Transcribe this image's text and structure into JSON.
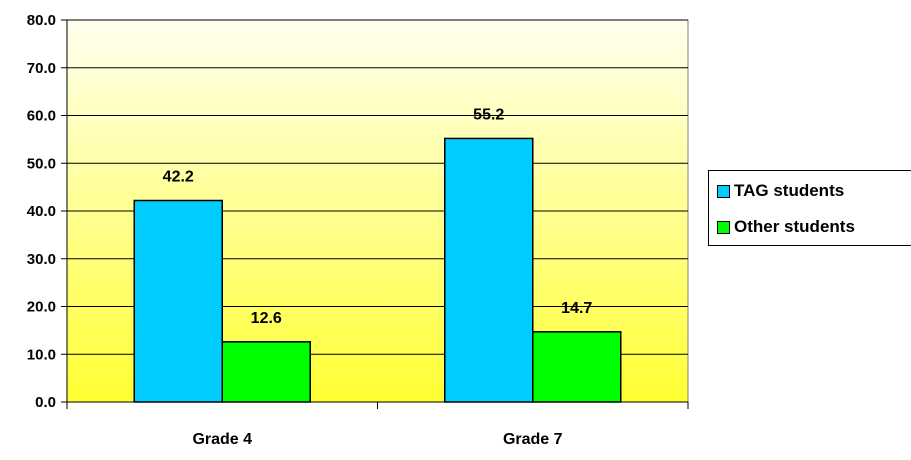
{
  "chart_data": {
    "type": "bar",
    "categories": [
      "Grade 4",
      "Grade 7"
    ],
    "series": [
      {
        "name": "TAG students",
        "values": [
          42.2,
          55.2
        ],
        "color": "#00ccff"
      },
      {
        "name": "Other students",
        "values": [
          12.6,
          14.7
        ],
        "color": "#00ff00"
      }
    ],
    "data_labels": [
      [
        "42.2",
        "55.2"
      ],
      [
        "12.6",
        "14.7"
      ]
    ],
    "yticks": [
      "0.0",
      "10.0",
      "20.0",
      "30.0",
      "40.0",
      "50.0",
      "60.0",
      "70.0",
      "80.0"
    ],
    "ylim": [
      0,
      80
    ],
    "grid": true,
    "legend_position": "right",
    "plot_background": {
      "top": "#fffff0",
      "bottom": "#ffff33"
    }
  }
}
